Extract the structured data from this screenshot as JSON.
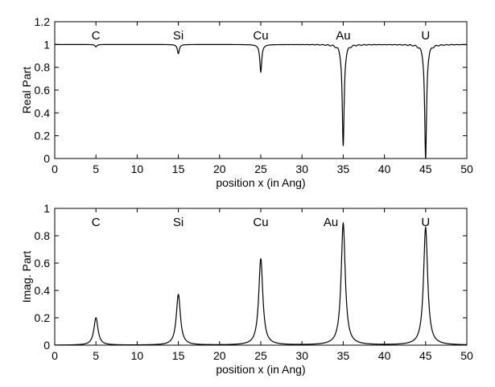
{
  "chart_data": [
    {
      "type": "line",
      "xlabel": "position x (in Ang)",
      "ylabel": "Real Part",
      "xlim": [
        0,
        50
      ],
      "ylim": [
        0,
        1.2
      ],
      "x_ticks": [
        0,
        5,
        10,
        15,
        20,
        25,
        30,
        35,
        40,
        45,
        50
      ],
      "y_ticks": [
        0,
        0.2,
        0.4,
        0.6,
        0.8,
        1,
        1.2
      ],
      "grid": false,
      "baseline": 1.0,
      "annotations": [
        {
          "text": "C",
          "x": 5
        },
        {
          "text": "Si",
          "x": 15
        },
        {
          "text": "Cu",
          "x": 25
        },
        {
          "text": "Au",
          "x": 35
        },
        {
          "text": "U",
          "x": 45
        }
      ],
      "series": [
        {
          "line_color": "#000000",
          "dips": [
            {
              "x": 5,
              "min": 0.98
            },
            {
              "x": 15,
              "min": 0.92
            },
            {
              "x": 25,
              "min": 0.76
            },
            {
              "x": 35,
              "min": 0.11
            },
            {
              "x": 45,
              "min": 0.0
            }
          ]
        }
      ]
    },
    {
      "type": "line",
      "xlabel": "position x (in Ang)",
      "ylabel": "Imag. Part",
      "xlim": [
        0,
        50
      ],
      "ylim": [
        0,
        1
      ],
      "x_ticks": [
        0,
        5,
        10,
        15,
        20,
        25,
        30,
        35,
        40,
        45,
        50
      ],
      "y_ticks": [
        0,
        0.2,
        0.4,
        0.6,
        0.8,
        1
      ],
      "grid": false,
      "baseline": 0.0,
      "annotations": [
        {
          "text": "C",
          "x": 5
        },
        {
          "text": "Si",
          "x": 15
        },
        {
          "text": "Cu",
          "x": 25
        },
        {
          "text": "Au",
          "x": 33.5
        },
        {
          "text": "U",
          "x": 45
        }
      ],
      "series": [
        {
          "line_color": "#000000",
          "peaks": [
            {
              "x": 5,
              "max": 0.2
            },
            {
              "x": 15,
              "max": 0.37
            },
            {
              "x": 25,
              "max": 0.63
            },
            {
              "x": 35,
              "max": 0.89
            },
            {
              "x": 45,
              "max": 0.86
            }
          ]
        }
      ]
    }
  ]
}
